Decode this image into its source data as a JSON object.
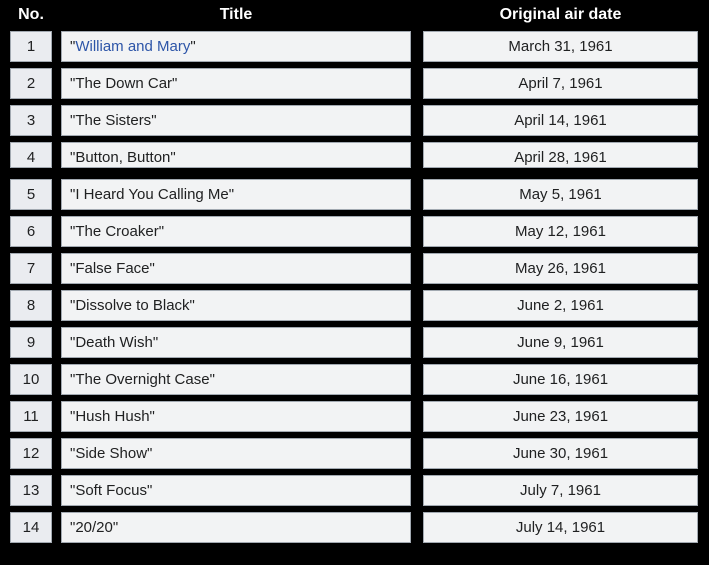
{
  "table": {
    "quote": "\"",
    "columns": [
      "No.",
      "Title",
      "Original air date"
    ],
    "rows": [
      {
        "no": "1",
        "title": "William and Mary",
        "date": "March 31, 1961",
        "link": true
      },
      {
        "no": "2",
        "title": "The Down Car",
        "date": "April 7, 1961",
        "link": false
      },
      {
        "no": "3",
        "title": "The Sisters",
        "date": "April 14, 1961",
        "link": false
      },
      {
        "no": "4",
        "title": "Button, Button",
        "date": "April 28, 1961",
        "link": false
      },
      {
        "no": "5",
        "title": "I Heard You Calling Me",
        "date": "May 5, 1961",
        "link": false
      },
      {
        "no": "6",
        "title": "The Croaker",
        "date": "May 12, 1961",
        "link": false
      },
      {
        "no": "7",
        "title": "False Face",
        "date": "May 26, 1961",
        "link": false
      },
      {
        "no": "8",
        "title": "Dissolve to Black",
        "date": "June 2, 1961",
        "link": false
      },
      {
        "no": "9",
        "title": "Death Wish",
        "date": "June 9, 1961",
        "link": false
      },
      {
        "no": "10",
        "title": "The Overnight Case",
        "date": "June 16, 1961",
        "link": false
      },
      {
        "no": "11",
        "title": "Hush Hush",
        "date": "June 23, 1961",
        "link": false
      },
      {
        "no": "12",
        "title": "Side Show",
        "date": "June 30, 1961",
        "link": false
      },
      {
        "no": "13",
        "title": "Soft Focus",
        "date": "July 7, 1961",
        "link": false
      },
      {
        "no": "14",
        "title": "20/20",
        "date": "July 14, 1961",
        "link": false
      }
    ]
  },
  "colors": {
    "page_bg": "#000000",
    "header_text": "#ffffff",
    "cell_text": "#202122",
    "cell_bg": "#f2f3f4",
    "number_cell_bg": "#eaecf0",
    "cell_border": "#a2a9b1",
    "link_blue": "#2d55a8"
  }
}
